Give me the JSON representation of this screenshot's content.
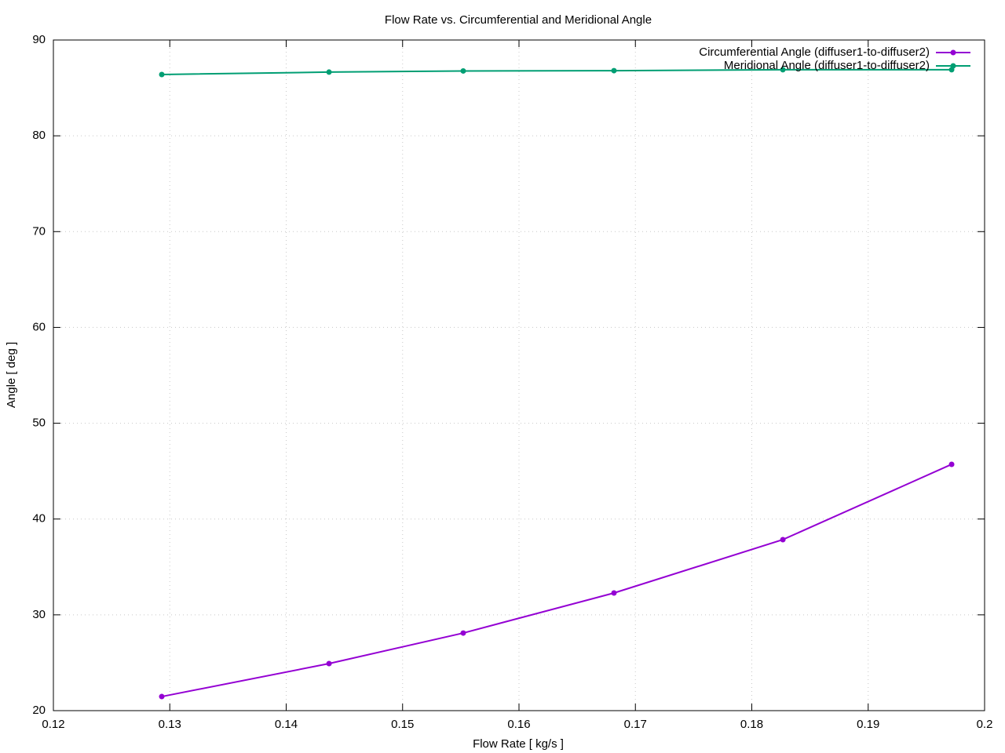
{
  "chart_data": {
    "type": "line",
    "title": "Flow Rate vs. Circumferential and Meridional Angle",
    "x_label": "Flow Rate [ kg/s ]",
    "y_label": "Angle [ deg ]",
    "x": [
      0.12931,
      0.14368,
      0.15521,
      0.16816,
      0.18267,
      0.19717
    ],
    "series": [
      {
        "name": "Circumferential Angle (diffuser1-to-diffuser2)",
        "color": "#9400d3",
        "values": [
          21.47,
          24.91,
          28.1,
          32.28,
          37.85,
          45.71
        ]
      },
      {
        "name": "Meridional Angle (diffuser1-to-diffuser2)",
        "color": "#009e73",
        "values": [
          86.4,
          86.65,
          86.77,
          86.8,
          86.9,
          86.9
        ]
      }
    ],
    "xlim": [
      0.12,
      0.2
    ],
    "xticks": [
      0.12,
      0.13,
      0.14,
      0.15,
      0.16,
      0.17,
      0.18,
      0.19,
      0.2
    ],
    "ylim": [
      20,
      90
    ],
    "yticks": [
      20,
      30,
      40,
      50,
      60,
      70,
      80,
      90
    ],
    "grid": true,
    "legend": "top right"
  }
}
